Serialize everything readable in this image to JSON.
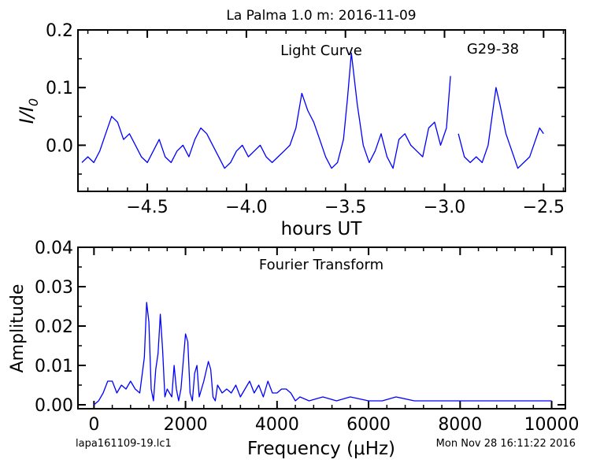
{
  "title": "La Palma 1.0 m:  2016-11-09",
  "footer": {
    "filename": "lapa161109-19.lc1",
    "timestamp": "Mon Nov 28 16:11:22 2016"
  },
  "colors": {
    "line": "#0000ff",
    "axes": "#000000"
  },
  "chart_data": [
    {
      "type": "line",
      "annotations": [
        "Light Curve",
        "G29-38"
      ],
      "xlabel": "hours UT",
      "ylabel": "I/I",
      "ylabel_sub": "0",
      "xlim": [
        -4.85,
        -2.39
      ],
      "ylim": [
        -0.08,
        0.2
      ],
      "xticks": [
        -4.5,
        -4.0,
        -3.5,
        -3.0,
        -2.5
      ],
      "xtick_labels": [
        "−4.5",
        "−4.0",
        "−3.5",
        "−3.0",
        "−2.5"
      ],
      "yticks": [
        0.0,
        0.1,
        0.2
      ],
      "ytick_labels": [
        "0.0",
        "0.1",
        "0.2"
      ],
      "series": [
        {
          "segments": [
            {
              "x": [
                -4.83,
                -4.8,
                -4.77,
                -4.74,
                -4.71,
                -4.68,
                -4.65,
                -4.62,
                -4.59,
                -4.56,
                -4.53,
                -4.5,
                -4.47,
                -4.44,
                -4.41,
                -4.38,
                -4.35,
                -4.32,
                -4.29,
                -4.26,
                -4.23,
                -4.2,
                -4.17,
                -4.14,
                -4.11,
                -4.08,
                -4.05,
                -4.02,
                -3.99,
                -3.96,
                -3.93,
                -3.9,
                -3.87,
                -3.84,
                -3.81,
                -3.78,
                -3.75,
                -3.72,
                -3.69,
                -3.66,
                -3.63,
                -3.6,
                -3.57,
                -3.54,
                -3.51,
                -3.49,
                -3.47,
                -3.44,
                -3.41,
                -3.38,
                -3.35,
                -3.32,
                -3.29,
                -3.26,
                -3.23,
                -3.2,
                -3.17,
                -3.14,
                -3.11,
                -3.08,
                -3.05,
                -3.02,
                -2.99,
                -2.97
              ],
              "y": [
                -0.03,
                -0.02,
                -0.03,
                -0.01,
                0.02,
                0.05,
                0.04,
                0.01,
                0.02,
                0.0,
                -0.02,
                -0.03,
                -0.01,
                0.01,
                -0.02,
                -0.03,
                -0.01,
                0.0,
                -0.02,
                0.01,
                0.03,
                0.02,
                0.0,
                -0.02,
                -0.04,
                -0.03,
                -0.01,
                0.0,
                -0.02,
                -0.01,
                0.0,
                -0.02,
                -0.03,
                -0.02,
                -0.01,
                0.0,
                0.03,
                0.09,
                0.06,
                0.04,
                0.01,
                -0.02,
                -0.04,
                -0.03,
                0.01,
                0.08,
                0.16,
                0.07,
                0.0,
                -0.03,
                -0.01,
                0.02,
                -0.02,
                -0.04,
                0.01,
                0.02,
                0.0,
                -0.01,
                -0.02,
                0.03,
                0.04,
                0.0,
                0.03,
                0.12
              ]
            },
            {
              "x": [
                -2.93,
                -2.9,
                -2.87,
                -2.84,
                -2.81,
                -2.78,
                -2.76,
                -2.74,
                -2.72,
                -2.69,
                -2.66,
                -2.63,
                -2.6,
                -2.57,
                -2.54,
                -2.52,
                -2.5
              ],
              "y": [
                0.02,
                -0.02,
                -0.03,
                -0.02,
                -0.03,
                0.0,
                0.05,
                0.1,
                0.07,
                0.02,
                -0.01,
                -0.04,
                -0.03,
                -0.02,
                0.01,
                0.03,
                0.02
              ]
            }
          ]
        }
      ]
    },
    {
      "type": "line",
      "annotations": [
        "Fourier Transform"
      ],
      "xlabel": "Frequency (μHz)",
      "ylabel": "Amplitude",
      "xlim": [
        -350,
        10300
      ],
      "ylim": [
        -0.001,
        0.04
      ],
      "xticks": [
        0,
        2000,
        4000,
        6000,
        8000,
        10000
      ],
      "xtick_labels": [
        "0",
        "2000",
        "4000",
        "6000",
        "8000",
        "10000"
      ],
      "yticks": [
        0.0,
        0.01,
        0.02,
        0.03,
        0.04
      ],
      "ytick_labels": [
        "0.00",
        "0.01",
        "0.02",
        "0.03",
        "0.04"
      ],
      "series": [
        {
          "segments": [
            {
              "x": [
                0,
                100,
                200,
                300,
                400,
                500,
                600,
                700,
                800,
                900,
                1000,
                1100,
                1150,
                1200,
                1250,
                1300,
                1350,
                1400,
                1450,
                1500,
                1550,
                1600,
                1700,
                1750,
                1800,
                1850,
                1900,
                2000,
                2050,
                2100,
                2150,
                2200,
                2250,
                2300,
                2400,
                2500,
                2550,
                2600,
                2650,
                2700,
                2800,
                2900,
                3000,
                3100,
                3200,
                3300,
                3400,
                3500,
                3600,
                3700,
                3800,
                3900,
                4000,
                4100,
                4200,
                4300,
                4400,
                4500,
                4700,
                5000,
                5300,
                5600,
                6000,
                6300,
                6600,
                7000,
                7400,
                8000,
                8400,
                8800,
                9200,
                9600,
                10000
              ],
              "y": [
                0.0,
                0.001,
                0.003,
                0.006,
                0.006,
                0.003,
                0.005,
                0.004,
                0.006,
                0.004,
                0.003,
                0.012,
                0.026,
                0.021,
                0.004,
                0.001,
                0.009,
                0.013,
                0.023,
                0.014,
                0.002,
                0.004,
                0.002,
                0.01,
                0.004,
                0.001,
                0.004,
                0.018,
                0.016,
                0.003,
                0.001,
                0.008,
                0.01,
                0.002,
                0.006,
                0.011,
                0.009,
                0.002,
                0.001,
                0.005,
                0.003,
                0.004,
                0.003,
                0.005,
                0.002,
                0.004,
                0.006,
                0.003,
                0.005,
                0.002,
                0.006,
                0.003,
                0.003,
                0.004,
                0.004,
                0.003,
                0.001,
                0.002,
                0.001,
                0.002,
                0.001,
                0.002,
                0.001,
                0.001,
                0.002,
                0.001,
                0.001,
                0.001,
                0.001,
                0.001,
                0.001,
                0.001,
                0.001
              ]
            }
          ]
        }
      ]
    }
  ]
}
